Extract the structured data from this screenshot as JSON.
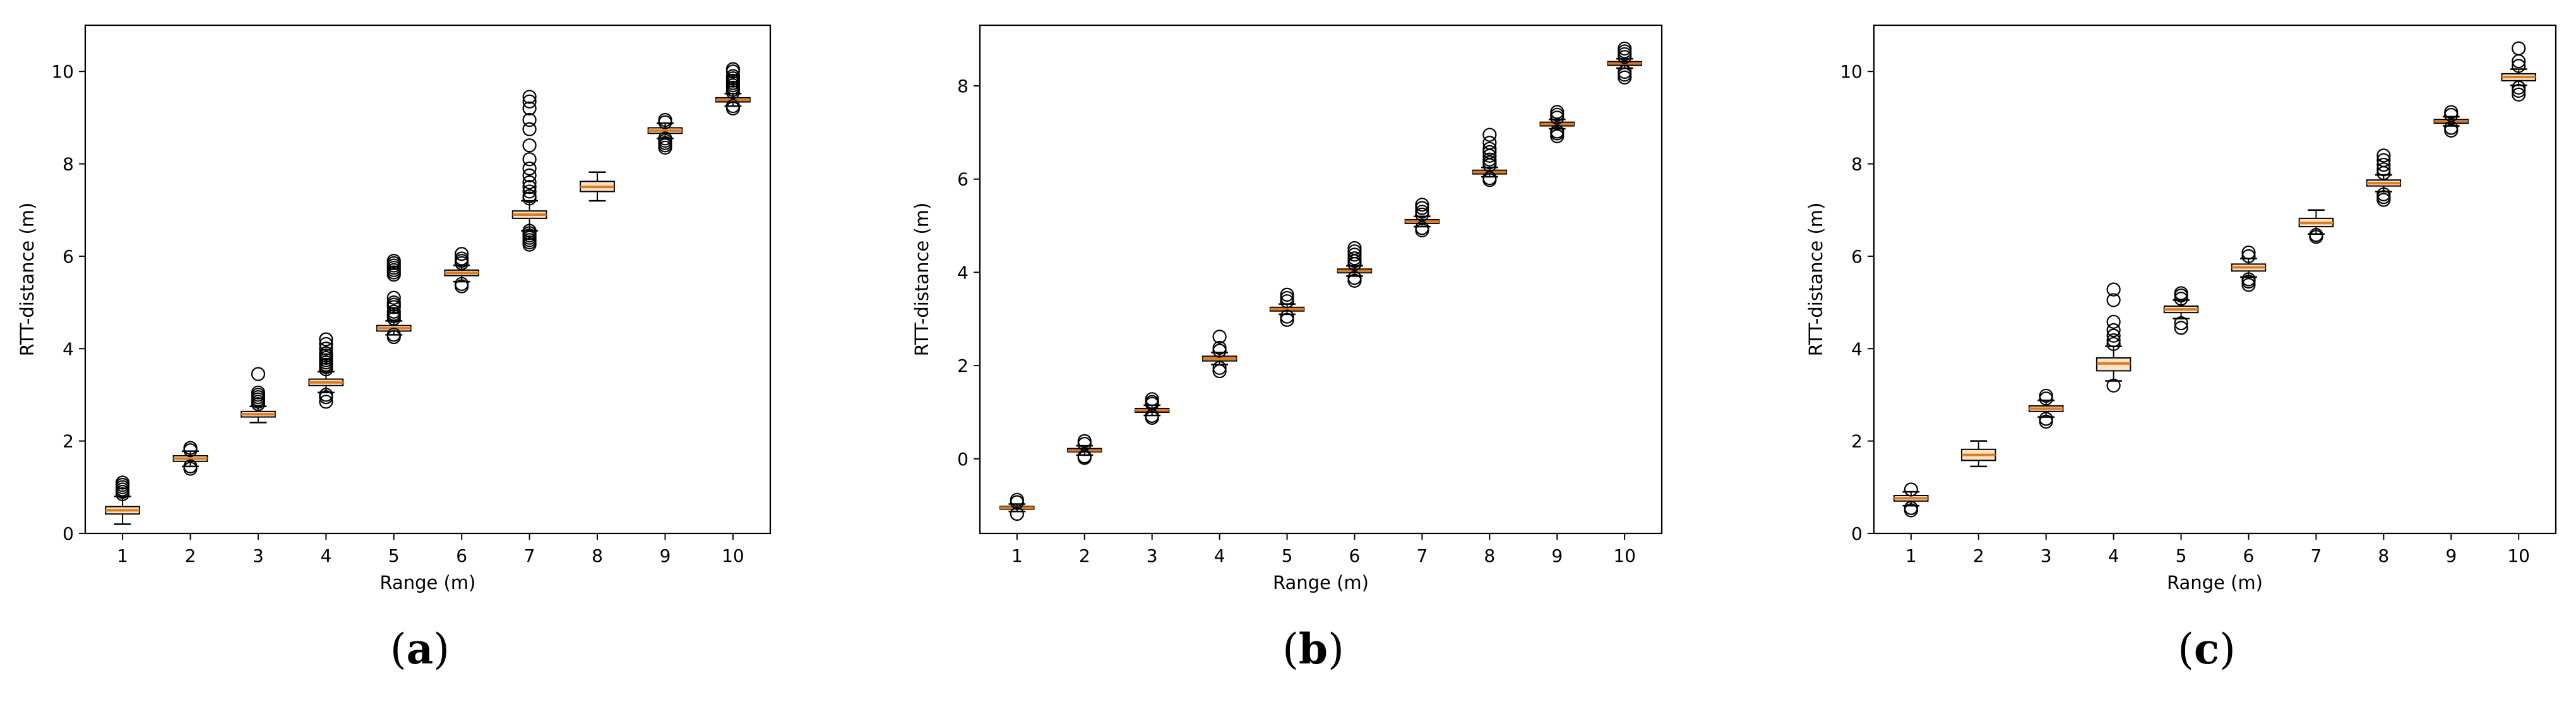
{
  "chart_data": [
    {
      "type": "box",
      "caption_letter": "a",
      "xlabel": "Range (m)",
      "ylabel": "RTT-distance (m)",
      "ylim": [
        0,
        11
      ],
      "yticks": [
        0,
        2,
        4,
        6,
        8,
        10
      ],
      "categories": [
        "1",
        "2",
        "3",
        "4",
        "5",
        "6",
        "7",
        "8",
        "9",
        "10"
      ],
      "grid": false,
      "boxes": [
        {
          "category": "1",
          "whisker_low": 0.2,
          "q1": 0.42,
          "median": 0.5,
          "q3": 0.58,
          "whisker_high": 0.8,
          "outliers": [
            0.85,
            0.9,
            0.95,
            1.0,
            1.05,
            1.1
          ]
        },
        {
          "category": "2",
          "whisker_low": 1.45,
          "q1": 1.56,
          "median": 1.62,
          "q3": 1.68,
          "whisker_high": 1.78,
          "outliers": [
            1.4,
            1.45,
            1.8,
            1.85
          ]
        },
        {
          "category": "3",
          "whisker_low": 2.4,
          "q1": 2.52,
          "median": 2.58,
          "q3": 2.64,
          "whisker_high": 2.75,
          "outliers": [
            2.8,
            2.85,
            2.9,
            2.95,
            3.0,
            3.05,
            3.45
          ]
        },
        {
          "category": "4",
          "whisker_low": 3.05,
          "q1": 3.2,
          "median": 3.27,
          "q3": 3.34,
          "whisker_high": 3.5,
          "outliers": [
            2.85,
            2.95,
            3.0,
            3.55,
            3.6,
            3.65,
            3.7,
            3.75,
            3.8,
            3.85,
            3.9,
            4.0,
            4.1,
            4.2
          ]
        },
        {
          "category": "5",
          "whisker_low": 4.3,
          "q1": 4.38,
          "median": 4.44,
          "q3": 4.5,
          "whisker_high": 4.6,
          "outliers": [
            4.25,
            4.3,
            4.65,
            4.7,
            4.75,
            4.8,
            4.9,
            4.95,
            5.0,
            5.1,
            5.6,
            5.65,
            5.7,
            5.75,
            5.8,
            5.85,
            5.9
          ]
        },
        {
          "category": "6",
          "whisker_low": 5.45,
          "q1": 5.58,
          "median": 5.64,
          "q3": 5.7,
          "whisker_high": 5.8,
          "outliers": [
            5.35,
            5.4,
            5.85,
            5.9,
            5.95,
            6.05
          ]
        },
        {
          "category": "7",
          "whisker_low": 6.55,
          "q1": 6.82,
          "median": 6.9,
          "q3": 6.98,
          "whisker_high": 7.2,
          "outliers": [
            6.25,
            6.3,
            6.35,
            6.4,
            6.45,
            6.5,
            6.55,
            7.25,
            7.3,
            7.4,
            7.5,
            7.6,
            7.75,
            7.9,
            8.1,
            8.4,
            8.75,
            8.95,
            9.2,
            9.35,
            9.45
          ]
        },
        {
          "category": "8",
          "whisker_low": 7.2,
          "q1": 7.4,
          "median": 7.5,
          "q3": 7.62,
          "whisker_high": 7.82,
          "outliers": []
        },
        {
          "category": "9",
          "whisker_low": 8.55,
          "q1": 8.66,
          "median": 8.72,
          "q3": 8.78,
          "whisker_high": 8.88,
          "outliers": [
            8.35,
            8.4,
            8.45,
            8.5,
            8.55,
            8.9,
            8.95
          ]
        },
        {
          "category": "10",
          "whisker_low": 9.25,
          "q1": 9.34,
          "median": 9.38,
          "q3": 9.43,
          "whisker_high": 9.52,
          "outliers": [
            9.2,
            9.25,
            9.55,
            9.6,
            9.65,
            9.7,
            9.75,
            9.8,
            9.85,
            9.9,
            10.0,
            10.05
          ]
        }
      ]
    },
    {
      "type": "box",
      "caption_letter": "b",
      "xlabel": "Range (m)",
      "ylabel": "RTT-distance (m)",
      "ylim": [
        -1.6,
        9.3
      ],
      "yticks": [
        0,
        2,
        4,
        6,
        8
      ],
      "categories": [
        "1",
        "2",
        "3",
        "4",
        "5",
        "6",
        "7",
        "8",
        "9",
        "10"
      ],
      "grid": false,
      "boxes": [
        {
          "category": "1",
          "whisker_low": -1.13,
          "q1": -1.08,
          "median": -1.05,
          "q3": -1.02,
          "whisker_high": -0.97,
          "outliers": [
            -1.18,
            -0.93,
            -0.88
          ]
        },
        {
          "category": "2",
          "whisker_low": 0.08,
          "q1": 0.15,
          "median": 0.18,
          "q3": 0.22,
          "whisker_high": 0.28,
          "outliers": [
            0.02,
            0.05,
            0.32,
            0.38
          ]
        },
        {
          "category": "3",
          "whisker_low": 0.93,
          "q1": 1.0,
          "median": 1.04,
          "q3": 1.08,
          "whisker_high": 1.15,
          "outliers": [
            0.88,
            0.92,
            1.18,
            1.22,
            1.28
          ]
        },
        {
          "category": "4",
          "whisker_low": 2.02,
          "q1": 2.1,
          "median": 2.15,
          "q3": 2.2,
          "whisker_high": 2.28,
          "outliers": [
            1.88,
            1.95,
            2.32,
            2.38,
            2.62
          ]
        },
        {
          "category": "5",
          "whisker_low": 3.1,
          "q1": 3.17,
          "median": 3.21,
          "q3": 3.25,
          "whisker_high": 3.32,
          "outliers": [
            2.98,
            3.05,
            3.38,
            3.45,
            3.52
          ]
        },
        {
          "category": "6",
          "whisker_low": 3.92,
          "q1": 3.99,
          "median": 4.03,
          "q3": 4.07,
          "whisker_high": 4.14,
          "outliers": [
            3.82,
            3.88,
            4.18,
            4.24,
            4.3,
            4.38,
            4.45,
            4.52
          ]
        },
        {
          "category": "7",
          "whisker_low": 4.98,
          "q1": 5.05,
          "median": 5.09,
          "q3": 5.13,
          "whisker_high": 5.2,
          "outliers": [
            4.9,
            4.95,
            5.24,
            5.3,
            5.38,
            5.45
          ]
        },
        {
          "category": "8",
          "whisker_low": 6.05,
          "q1": 6.11,
          "median": 6.15,
          "q3": 6.19,
          "whisker_high": 6.25,
          "outliers": [
            5.98,
            6.02,
            6.3,
            6.36,
            6.42,
            6.5,
            6.58,
            6.65,
            6.78,
            6.95
          ]
        },
        {
          "category": "9",
          "whisker_low": 7.08,
          "q1": 7.14,
          "median": 7.18,
          "q3": 7.22,
          "whisker_high": 7.28,
          "outliers": [
            6.92,
            6.98,
            7.02,
            7.32,
            7.38,
            7.44
          ]
        },
        {
          "category": "10",
          "whisker_low": 8.38,
          "q1": 8.44,
          "median": 8.48,
          "q3": 8.52,
          "whisker_high": 8.58,
          "outliers": [
            8.18,
            8.24,
            8.3,
            8.62,
            8.68,
            8.74,
            8.8
          ]
        }
      ]
    },
    {
      "type": "box",
      "caption_letter": "c",
      "xlabel": "Range (m)",
      "ylabel": "RTT-distance (m)",
      "ylim": [
        0,
        11
      ],
      "yticks": [
        0,
        2,
        4,
        6,
        8,
        10
      ],
      "categories": [
        "1",
        "2",
        "3",
        "4",
        "5",
        "6",
        "7",
        "8",
        "9",
        "10"
      ],
      "grid": false,
      "boxes": [
        {
          "category": "1",
          "whisker_low": 0.6,
          "q1": 0.7,
          "median": 0.76,
          "q3": 0.82,
          "whisker_high": 0.9,
          "outliers": [
            0.5,
            0.55,
            0.95
          ]
        },
        {
          "category": "2",
          "whisker_low": 1.45,
          "q1": 1.58,
          "median": 1.7,
          "q3": 1.82,
          "whisker_high": 2.0,
          "outliers": []
        },
        {
          "category": "3",
          "whisker_low": 2.52,
          "q1": 2.64,
          "median": 2.7,
          "q3": 2.76,
          "whisker_high": 2.88,
          "outliers": [
            2.42,
            2.48,
            2.92,
            2.98
          ]
        },
        {
          "category": "4",
          "whisker_low": 3.3,
          "q1": 3.52,
          "median": 3.68,
          "q3": 3.8,
          "whisker_high": 4.05,
          "outliers": [
            3.2,
            4.1,
            4.18,
            4.28,
            4.4,
            4.58,
            5.05,
            5.28
          ]
        },
        {
          "category": "5",
          "whisker_low": 4.65,
          "q1": 4.78,
          "median": 4.85,
          "q3": 4.92,
          "whisker_high": 5.05,
          "outliers": [
            4.45,
            4.55,
            5.08,
            5.15,
            5.2
          ]
        },
        {
          "category": "6",
          "whisker_low": 5.55,
          "q1": 5.68,
          "median": 5.76,
          "q3": 5.83,
          "whisker_high": 5.95,
          "outliers": [
            5.38,
            5.45,
            5.5,
            6.0,
            6.08
          ]
        },
        {
          "category": "7",
          "whisker_low": 6.48,
          "q1": 6.64,
          "median": 6.72,
          "q3": 6.82,
          "whisker_high": 7.0,
          "outliers": [
            6.42,
            6.46
          ]
        },
        {
          "category": "8",
          "whisker_low": 7.4,
          "q1": 7.52,
          "median": 7.58,
          "q3": 7.65,
          "whisker_high": 7.76,
          "outliers": [
            7.22,
            7.28,
            7.34,
            7.8,
            7.88,
            7.98,
            8.08,
            8.18
          ]
        },
        {
          "category": "9",
          "whisker_low": 8.82,
          "q1": 8.88,
          "median": 8.92,
          "q3": 8.96,
          "whisker_high": 9.02,
          "outliers": [
            8.72,
            8.78,
            9.06,
            9.12
          ]
        },
        {
          "category": "10",
          "whisker_low": 9.7,
          "q1": 9.8,
          "median": 9.88,
          "q3": 9.95,
          "whisker_high": 10.05,
          "outliers": [
            9.5,
            9.58,
            9.65,
            10.12,
            10.22,
            10.5
          ]
        }
      ]
    }
  ],
  "colors": {
    "axes": "#000000",
    "box_fill": "#fbe3c7",
    "box_edge": "#000000",
    "median": "#e07b1c",
    "outlier_edge": "#000000"
  }
}
